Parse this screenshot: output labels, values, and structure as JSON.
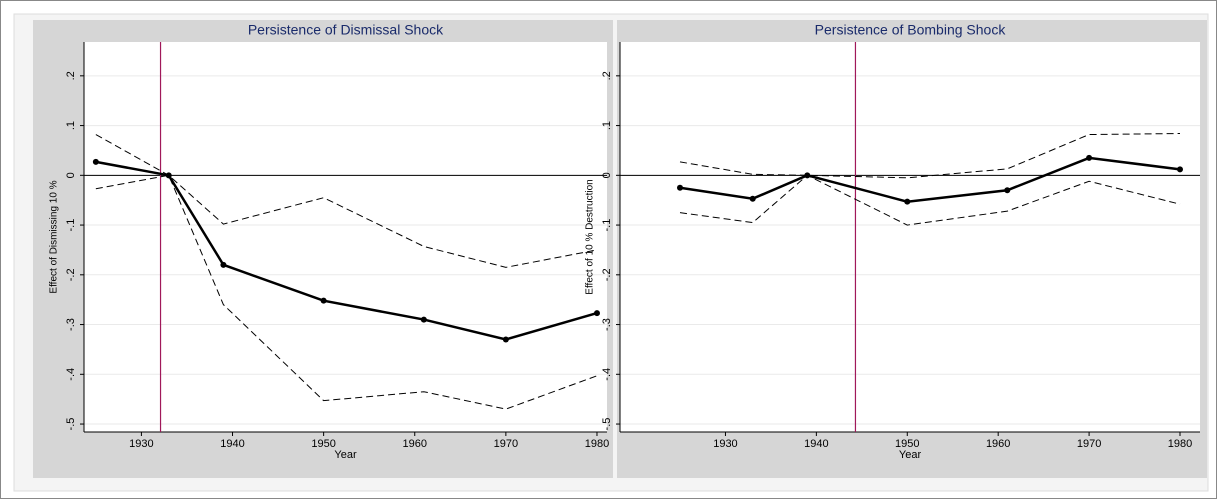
{
  "chart_data": [
    {
      "type": "line",
      "title": "Persistence of Dismissal Shock",
      "ylabel": "Effect of Dismissing 10 %",
      "xlabel": "Year",
      "x": [
        1925,
        1933,
        1939,
        1950,
        1961,
        1970,
        1980
      ],
      "series": [
        {
          "color": "#000000",
          "dashed": false,
          "values": [
            0.027,
            0,
            -0.18,
            -0.252,
            -0.29,
            -0.33,
            -0.277
          ]
        },
        {
          "color": "#000000",
          "dashed": true,
          "values": [
            0.082,
            0,
            -0.098,
            -0.045,
            -0.143,
            -0.185,
            -0.15
          ]
        },
        {
          "color": "#000000",
          "dashed": true,
          "values": [
            -0.027,
            0,
            -0.26,
            -0.453,
            -0.435,
            -0.47,
            -0.403
          ]
        }
      ],
      "vline": 1932.1,
      "vline_color": "#a0185a",
      "hline": 0,
      "xlim": [
        1923.7,
        1981.1
      ],
      "xticks": [
        1930,
        1940,
        1950,
        1960,
        1970,
        1980
      ],
      "ylim": [
        -0.516,
        0.268
      ],
      "yticks": [
        {
          "value": 0.2,
          "label": ".2"
        },
        {
          "value": 0.1,
          "label": ".1"
        },
        0,
        {
          "value": -0.1,
          "label": "-.1"
        },
        {
          "value": -0.2,
          "label": "-.2"
        },
        {
          "value": -0.3,
          "label": "-.3"
        },
        {
          "value": -0.4,
          "label": "-.4"
        },
        {
          "value": -0.5,
          "label": "-.5"
        }
      ],
      "grid": true
    },
    {
      "type": "line",
      "title": "Persistence of Bombing Shock",
      "ylabel": "Effect of 10 % Destruction",
      "xlabel": "Year",
      "x": [
        1925,
        1933,
        1939,
        1950,
        1961,
        1970,
        1980
      ],
      "series": [
        {
          "color": "#000000",
          "dashed": false,
          "values": [
            -0.025,
            -0.047,
            0,
            -0.053,
            -0.03,
            0.035,
            0.012
          ]
        },
        {
          "color": "#000000",
          "dashed": true,
          "values": [
            0.027,
            0.002,
            0,
            -0.005,
            0.013,
            0.082,
            0.084
          ]
        },
        {
          "color": "#000000",
          "dashed": true,
          "values": [
            -0.075,
            -0.095,
            0,
            -0.1,
            -0.072,
            -0.012,
            -0.058
          ]
        }
      ],
      "vline": 1944.3,
      "vline_color": "#a0185a",
      "hline": 0,
      "xlim": [
        1918.4,
        1982.2
      ],
      "xticks": [
        1930,
        1940,
        1950,
        1960,
        1970,
        1980
      ],
      "ylim": [
        -0.516,
        0.268
      ],
      "yticks": [
        {
          "value": 0.2,
          "label": ".2"
        },
        {
          "value": 0.1,
          "label": ".1"
        },
        0,
        {
          "value": -0.1,
          "label": "-.1"
        },
        {
          "value": -0.2,
          "label": "-.2"
        },
        {
          "value": -0.3,
          "label": "-.3"
        },
        {
          "value": -0.4,
          "label": "-.4"
        },
        {
          "value": -0.5,
          "label": "-.5"
        }
      ],
      "grid": true
    }
  ]
}
